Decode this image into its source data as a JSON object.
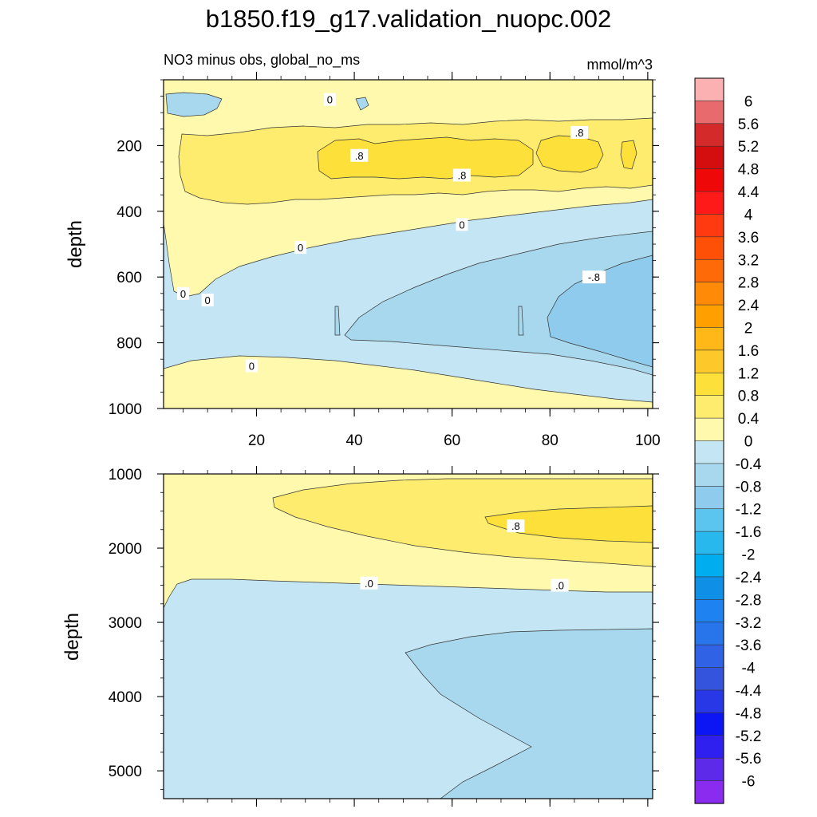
{
  "figure": {
    "title": "b1850.f19_g17.validation_nuopc.002"
  },
  "chart_data": {
    "type": "contour",
    "panels": [
      {
        "name": "upper",
        "left_label": "NO3 minus obs, global_no_ms",
        "right_label": "mmol/m^3",
        "ylabel": "depth",
        "ylim": [
          0,
          1000
        ],
        "yticks": [
          200,
          400,
          600,
          800,
          1000
        ],
        "y_inverted": true,
        "xlim": [
          1,
          101
        ],
        "xticks": [
          20,
          40,
          60,
          80,
          100
        ],
        "regions": [
          {
            "level": "0 to 0.4",
            "color": "#fef9ad",
            "description": "near-surface band and deep band below ~850m at left"
          },
          {
            "level": "0.4 to 0.8",
            "color": "#fdec6e",
            "description": "band centred near 200-350m across all x"
          },
          {
            "level": "0.8 to 1.2",
            "color": "#fde03a",
            "description": "patches near 200-250m"
          },
          {
            "level": "-0.4 to 0",
            "color": "#c4e6f4",
            "description": "mid-depth tongue widening to the right"
          },
          {
            "level": "-0.8 to -0.4",
            "color": "#a8d8ee",
            "description": "core 550-900m at x>40 and near-surface patch at left"
          },
          {
            "level": "-1.2 to -0.8",
            "color": "#8ecbec",
            "description": "core 550-900m at x>80"
          }
        ],
        "contour_labels": [
          {
            "text": "0",
            "x": 35,
            "y": 60
          },
          {
            "text": ".8",
            "x": 41,
            "y": 230
          },
          {
            "text": ".8",
            "x": 62,
            "y": 290
          },
          {
            "text": ".8",
            "x": 86,
            "y": 160
          },
          {
            "text": "0",
            "x": 62,
            "y": 440
          },
          {
            "text": "0",
            "x": 29,
            "y": 510
          },
          {
            "text": "0",
            "x": 5,
            "y": 650
          },
          {
            "text": "0",
            "x": 10,
            "y": 670
          },
          {
            "text": "-.8",
            "x": 89,
            "y": 600
          },
          {
            "text": "0",
            "x": 19,
            "y": 870
          }
        ]
      },
      {
        "name": "lower",
        "ylabel": "depth",
        "ylim": [
          1000,
          5375
        ],
        "yticks": [
          1000,
          2000,
          3000,
          4000,
          5000
        ],
        "y_inverted": true,
        "xlim": [
          1,
          101
        ],
        "regions": [
          {
            "level": "0 to 0.4",
            "color": "#fef9ad",
            "description": "upper band 1000-2600m"
          },
          {
            "level": "0.4 to 0.8",
            "color": "#fdec6e",
            "description": "tongue 1300-2200m for x>23"
          },
          {
            "level": "0.8 to 1.2",
            "color": "#fde03a",
            "description": "core ~1500-1850m for x>68"
          },
          {
            "level": "-0.4 to 0",
            "color": "#c4e6f4",
            "description": "deep water below ~2500m"
          },
          {
            "level": "-0.8 to -0.4",
            "color": "#a8d8ee",
            "description": "deep core below ~3100m for x>52"
          }
        ],
        "contour_labels": [
          {
            "text": ".8",
            "x": 73,
            "y": 1700
          },
          {
            "text": ".0",
            "x": 43,
            "y": 2470
          },
          {
            "text": ".0",
            "x": 82,
            "y": 2500
          }
        ]
      }
    ],
    "colorbar": {
      "labels": [
        "6",
        "5.6",
        "5.2",
        "4.8",
        "4.4",
        "4",
        "3.6",
        "3.2",
        "2.8",
        "2.4",
        "2",
        "1.6",
        "1.2",
        "0.8",
        "0.4",
        "0",
        "-0.4",
        "-0.8",
        "-1.2",
        "-1.6",
        "-2",
        "-2.4",
        "-2.8",
        "-3.2",
        "-3.6",
        "-4",
        "-4.4",
        "-4.8",
        "-5.2",
        "-5.6",
        "-6"
      ],
      "colors": [
        "#fbb0b1",
        "#e86a6c",
        "#d42a2a",
        "#d40e0e",
        "#ef0808",
        "#ff1a1a",
        "#ff3a10",
        "#ff5008",
        "#ff6a08",
        "#ff8a08",
        "#ffa000",
        "#ffb818",
        "#fdc92a",
        "#fde03a",
        "#fdec6e",
        "#fef9ad",
        "#c4e6f4",
        "#a8d8ee",
        "#8ecbec",
        "#5cc5ef",
        "#28b8ee",
        "#00aef0",
        "#0f90e6",
        "#1e82f0",
        "#2874ea",
        "#3062e6",
        "#3454dd",
        "#2838e6",
        "#0c16f4",
        "#3020f0",
        "#5c2ae8",
        "#8a2cf0"
      ]
    }
  }
}
